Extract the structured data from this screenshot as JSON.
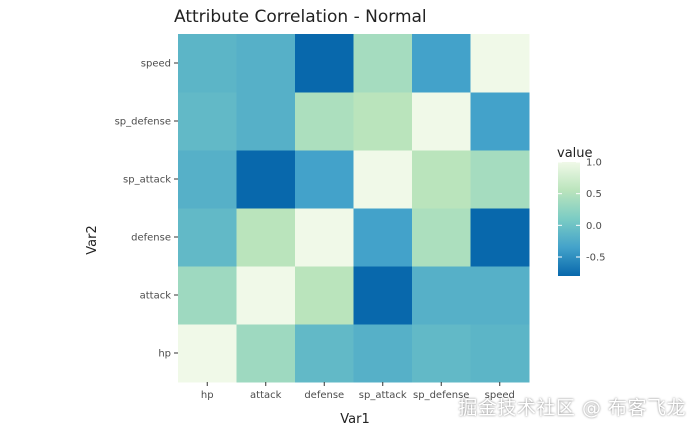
{
  "chart_data": {
    "type": "heatmap",
    "title": "Attribute Correlation - Normal",
    "xlabel": "Var1",
    "ylabel": "Var2",
    "x_categories": [
      "hp",
      "attack",
      "defense",
      "sp_attack",
      "sp_defense",
      "speed"
    ],
    "y_categories": [
      "hp",
      "attack",
      "defense",
      "sp_attack",
      "sp_defense",
      "speed"
    ],
    "values": [
      [
        1.0,
        0.35,
        -0.1,
        -0.2,
        -0.1,
        -0.15
      ],
      [
        0.35,
        1.0,
        0.55,
        -0.8,
        -0.2,
        -0.2
      ],
      [
        -0.1,
        0.55,
        1.0,
        -0.35,
        0.45,
        -0.8
      ],
      [
        -0.2,
        -0.8,
        -0.35,
        1.0,
        0.55,
        0.4
      ],
      [
        -0.1,
        -0.2,
        0.45,
        0.55,
        1.0,
        -0.35
      ],
      [
        -0.15,
        -0.2,
        -0.8,
        0.4,
        -0.35,
        1.0
      ]
    ],
    "legend": {
      "title": "value",
      "ticks": [
        1.0,
        0.5,
        0.0,
        -0.5
      ],
      "tick_labels": [
        "1.0",
        "0.5",
        "0.0",
        "-0.5"
      ],
      "range": [
        -0.8,
        1.0
      ],
      "position": "right"
    },
    "colors": [
      "#0868ac",
      "#43a2ca",
      "#7bccc4",
      "#bae4bc",
      "#f0f9e8"
    ],
    "background": "#ebf2e6"
  },
  "watermark": "掘金技术社区 @ 布客飞龙"
}
